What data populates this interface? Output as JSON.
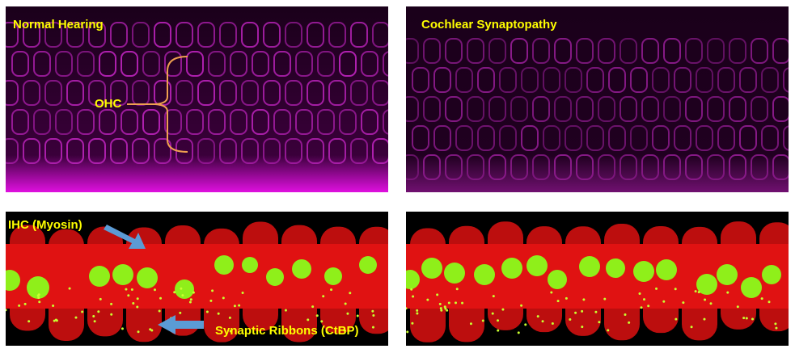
{
  "panels": {
    "normal_hearing": {
      "title": "Normal Hearing",
      "annotation": "OHC"
    },
    "cochlear_synaptopathy": {
      "title": "Cochlear Synaptopathy"
    },
    "ihc_normal": {
      "annotation_ihc": "IHC (Myosin)",
      "annotation_ribbons": "Synaptic Ribbons (CtBP)"
    },
    "ihc_synaptopathy": {}
  },
  "colors": {
    "label": "#ffff00",
    "myosin_ohc": "#c020c0",
    "myosin_ihc": "#e01010",
    "nuclei": "#90ff20",
    "ribbons": "#c8ff30",
    "arrow": "#5b9bd5",
    "bracket": "#f0a050"
  }
}
